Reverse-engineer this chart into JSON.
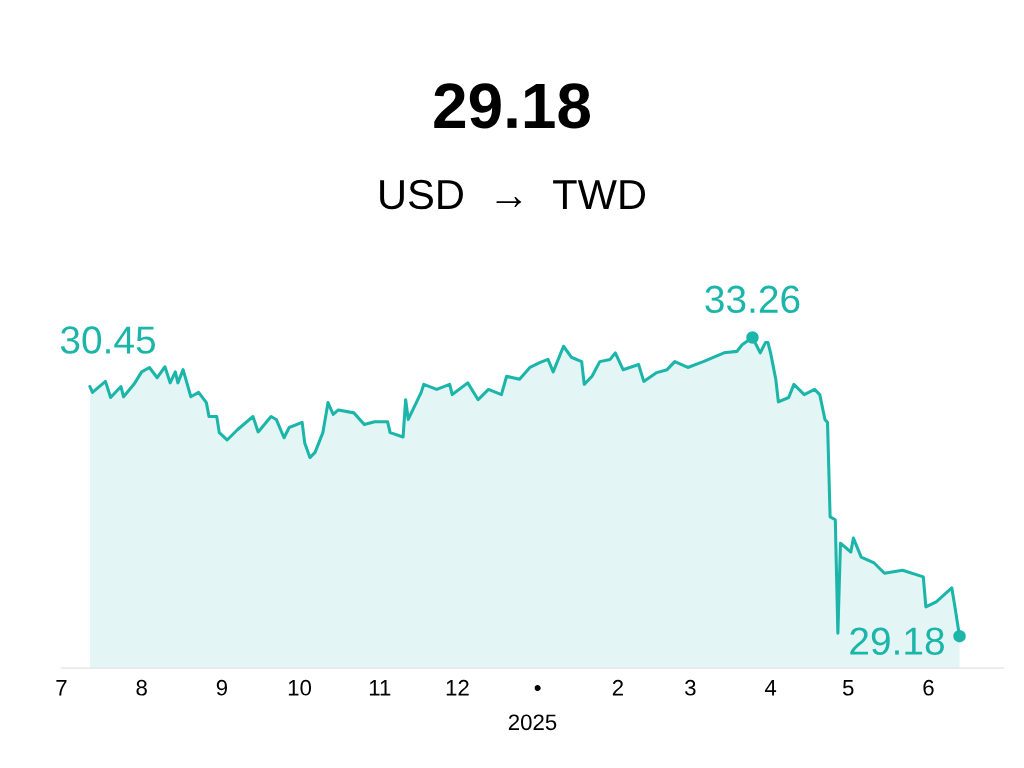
{
  "chart_data": {
    "type": "area",
    "title": "29.18",
    "subtitle": "USD  →  TWD",
    "xlabel": "2025",
    "annotations": [
      "30.45"
    ],
    "x": [
      "2024-07-12",
      "2024-07-13",
      "2024-07-18",
      "2024-07-20",
      "2024-07-24",
      "2024-07-25",
      "2024-07-29",
      "2024-08-01",
      "2024-08-04",
      "2024-08-07",
      "2024-08-10",
      "2024-08-12",
      "2024-08-14",
      "2024-08-15",
      "2024-08-17",
      "2024-08-20",
      "2024-08-23",
      "2024-08-26",
      "2024-08-27",
      "2024-08-30",
      "2024-08-31",
      "2024-09-03",
      "2024-09-07",
      "2024-09-13",
      "2024-09-15",
      "2024-09-20",
      "2024-09-22",
      "2024-09-25",
      "2024-09-27",
      "2024-10-02",
      "2024-10-03",
      "2024-10-05",
      "2024-10-07",
      "2024-10-10",
      "2024-10-12",
      "2024-10-14",
      "2024-10-16",
      "2024-10-22",
      "2024-10-26",
      "2024-10-30",
      "2024-11-04",
      "2024-11-05",
      "2024-11-10",
      "2024-11-11",
      "2024-11-12",
      "2024-11-17",
      "2024-11-18",
      "2024-11-23",
      "2024-11-28",
      "2024-11-29",
      "2024-12-05",
      "2024-12-09",
      "2024-12-13",
      "2024-12-18",
      "2024-12-20",
      "2024-12-25",
      "2024-12-29",
      "2025-01-02",
      "2025-01-05",
      "2025-01-07",
      "2025-01-11",
      "2025-01-14",
      "2025-01-18",
      "2025-01-19",
      "2025-01-22",
      "2025-01-25",
      "2025-01-29",
      "2025-01-31",
      "2025-02-03",
      "2025-02-09",
      "2025-02-11",
      "2025-02-16",
      "2025-02-20",
      "2025-02-23",
      "2025-02-28",
      "2025-03-06",
      "2025-03-14",
      "2025-03-19",
      "2025-03-21",
      "2025-03-25",
      "2025-03-28",
      "2025-03-30",
      "2025-03-31",
      "2025-04-01",
      "2025-04-03",
      "2025-04-04",
      "2025-04-08",
      "2025-04-10",
      "2025-04-14",
      "2025-04-18",
      "2025-04-20",
      "2025-04-22",
      "2025-04-23",
      "2025-04-24",
      "2025-04-26",
      "2025-04-27",
      "2025-04-28",
      "2025-05-02",
      "2025-05-03",
      "2025-05-06",
      "2025-05-11",
      "2025-05-15",
      "2025-05-22",
      "2025-05-30",
      "2025-05-31",
      "2025-06-04",
      "2025-06-10",
      "2025-06-11",
      "2025-06-13"
    ],
    "series": [
      {
        "color": "#1bb5a9",
        "values": [
          32.59,
          32.51,
          32.66,
          32.44,
          32.59,
          32.45,
          32.62,
          32.79,
          32.85,
          32.71,
          32.86,
          32.64,
          32.79,
          32.64,
          32.82,
          32.45,
          32.51,
          32.37,
          32.18,
          32.18,
          31.96,
          31.86,
          32.0,
          32.18,
          31.97,
          32.18,
          32.14,
          31.89,
          32.03,
          32.1,
          31.82,
          31.62,
          31.69,
          31.96,
          32.37,
          32.21,
          32.27,
          32.23,
          32.07,
          32.11,
          32.11,
          31.96,
          31.9,
          32.41,
          32.14,
          32.51,
          32.62,
          32.55,
          32.62,
          32.48,
          32.64,
          32.41,
          32.55,
          32.48,
          32.73,
          32.69,
          32.85,
          32.92,
          32.96,
          32.79,
          33.14,
          32.99,
          32.93,
          32.62,
          32.73,
          32.93,
          32.96,
          33.05,
          32.82,
          32.89,
          32.66,
          32.78,
          32.82,
          32.93,
          32.85,
          32.93,
          33.05,
          33.07,
          33.16,
          33.26,
          33.05,
          33.19,
          33.19,
          33.05,
          32.69,
          32.38,
          32.44,
          32.62,
          32.48,
          32.55,
          32.48,
          32.14,
          32.1,
          30.81,
          30.77,
          29.22,
          30.45,
          30.33,
          30.52,
          30.26,
          30.18,
          30.04,
          30.08,
          29.99,
          29.58,
          29.65,
          29.84,
          29.63,
          29.18
        ],
        "value_labels": [
          null,
          null,
          null,
          null,
          null,
          null,
          null,
          null,
          null,
          null,
          null,
          null,
          null,
          null,
          null,
          null,
          null,
          null,
          null,
          null,
          null,
          null,
          null,
          null,
          null,
          null,
          null,
          null,
          null,
          null,
          null,
          null,
          null,
          null,
          null,
          null,
          null,
          null,
          null,
          null,
          null,
          null,
          null,
          null,
          null,
          null,
          null,
          null,
          null,
          null,
          null,
          null,
          null,
          null,
          null,
          null,
          null,
          null,
          null,
          null,
          null,
          null,
          null,
          null,
          null,
          null,
          null,
          null,
          null,
          null,
          null,
          null,
          null,
          null,
          null,
          null,
          null,
          null,
          null,
          "33.26",
          null,
          null,
          null,
          null,
          null,
          null,
          null,
          null,
          null,
          null,
          null,
          null,
          null,
          null,
          null,
          null,
          null,
          null,
          null,
          null,
          null,
          null,
          null,
          null,
          null,
          null,
          null,
          null,
          "29.18"
        ]
      }
    ],
    "xticks": [
      {
        "value": "2024-07-01",
        "label": "7"
      },
      {
        "value": "2024-08-01",
        "label": "8"
      },
      {
        "value": "2024-09-01",
        "label": "9"
      },
      {
        "value": "2024-10-01",
        "label": "10"
      },
      {
        "value": "2024-11-01",
        "label": "11"
      },
      {
        "value": "2024-12-01",
        "label": "12"
      },
      {
        "value": "2025-01-01",
        "label": "•"
      },
      {
        "value": "2025-02-01",
        "label": "2"
      },
      {
        "value": "2025-03-01",
        "label": "3"
      },
      {
        "value": "2025-04-01",
        "label": "4"
      },
      {
        "value": "2025-05-01",
        "label": "5"
      },
      {
        "value": "2025-06-01",
        "label": "6"
      }
    ],
    "xlim": [
      "2024-07-01",
      "2025-06-30"
    ],
    "tick_labels": "x",
    "grid": false,
    "legend": false
  }
}
